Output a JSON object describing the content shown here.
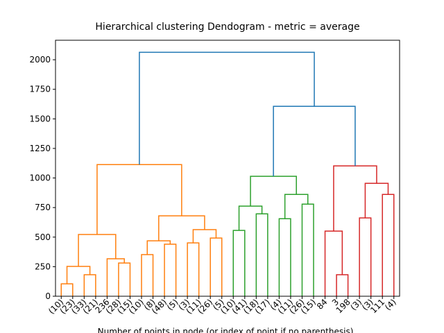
{
  "chart_data": {
    "type": "dendrogram",
    "title": "Hierarchical clustering Dendogram - metric = average",
    "xlabel": "Number of points in node (or index of point if no parenthesis)",
    "leaves": [
      "(10)",
      "(23)",
      "(33)",
      "(21)",
      "236",
      "(28)",
      "(15)",
      "(10)",
      "(8)",
      "(48)",
      "(5)",
      "(3)",
      "(11)",
      "(26)",
      "(5)",
      "(10)",
      "(41)",
      "(18)",
      "(17)",
      "(4)",
      "(11)",
      "(26)",
      "(15)",
      "84",
      "3",
      "198",
      "(3)",
      "(3)",
      "111",
      "(4)"
    ],
    "links": [
      {
        "left": 0,
        "right": 1,
        "height": 105,
        "color": "#ff7f0e"
      },
      {
        "left": 2,
        "right": 3,
        "height": 182,
        "color": "#ff7f0e"
      },
      {
        "left": 30,
        "right": 31,
        "height": 252,
        "color": "#ff7f0e"
      },
      {
        "left": 5,
        "right": 6,
        "height": 281,
        "color": "#ff7f0e"
      },
      {
        "left": 4,
        "right": 33,
        "height": 317,
        "color": "#ff7f0e"
      },
      {
        "left": 32,
        "right": 34,
        "height": 522,
        "color": "#ff7f0e"
      },
      {
        "left": 7,
        "right": 8,
        "height": 352,
        "color": "#ff7f0e"
      },
      {
        "left": 9,
        "right": 10,
        "height": 440,
        "color": "#ff7f0e"
      },
      {
        "left": 36,
        "right": 37,
        "height": 469,
        "color": "#ff7f0e"
      },
      {
        "left": 11,
        "right": 12,
        "height": 451,
        "color": "#ff7f0e"
      },
      {
        "left": 13,
        "right": 14,
        "height": 492,
        "color": "#ff7f0e"
      },
      {
        "left": 39,
        "right": 40,
        "height": 563,
        "color": "#ff7f0e"
      },
      {
        "left": 38,
        "right": 41,
        "height": 680,
        "color": "#ff7f0e"
      },
      {
        "left": 35,
        "right": 42,
        "height": 1113,
        "color": "#ff7f0e"
      },
      {
        "left": 15,
        "right": 16,
        "height": 557,
        "color": "#2ca02c"
      },
      {
        "left": 17,
        "right": 18,
        "height": 697,
        "color": "#2ca02c"
      },
      {
        "left": 44,
        "right": 45,
        "height": 762,
        "color": "#2ca02c"
      },
      {
        "left": 19,
        "right": 20,
        "height": 656,
        "color": "#2ca02c"
      },
      {
        "left": 21,
        "right": 22,
        "height": 779,
        "color": "#2ca02c"
      },
      {
        "left": 47,
        "right": 48,
        "height": 861,
        "color": "#2ca02c"
      },
      {
        "left": 46,
        "right": 49,
        "height": 1014,
        "color": "#2ca02c"
      },
      {
        "left": 24,
        "right": 25,
        "height": 182,
        "color": "#d62728"
      },
      {
        "left": 23,
        "right": 51,
        "height": 551,
        "color": "#d62728"
      },
      {
        "left": 26,
        "right": 27,
        "height": 662,
        "color": "#d62728"
      },
      {
        "left": 28,
        "right": 29,
        "height": 861,
        "color": "#d62728"
      },
      {
        "left": 53,
        "right": 54,
        "height": 955,
        "color": "#d62728"
      },
      {
        "left": 52,
        "right": 55,
        "height": 1102,
        "color": "#d62728"
      },
      {
        "left": 50,
        "right": 56,
        "height": 1606,
        "color": "#1f77b4"
      },
      {
        "left": 43,
        "right": 57,
        "height": 2063,
        "color": "#1f77b4"
      }
    ],
    "ylim": [
      0,
      2165
    ],
    "yticks": [
      0,
      250,
      500,
      750,
      1000,
      1250,
      1500,
      1750,
      2000
    ]
  }
}
